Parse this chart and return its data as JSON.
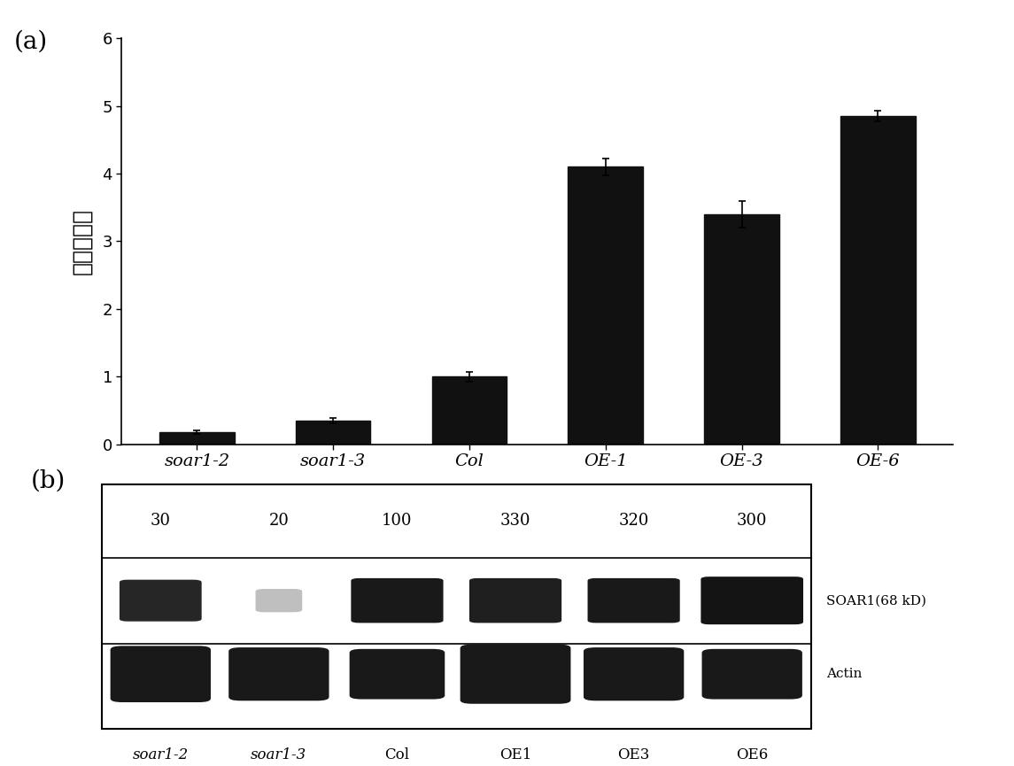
{
  "bar_categories": [
    "soar1-2",
    "soar1-3",
    "Col",
    "OE-1",
    "OE-3",
    "OE-6"
  ],
  "bar_values": [
    0.18,
    0.35,
    1.0,
    4.1,
    3.4,
    4.85
  ],
  "bar_errors": [
    0.03,
    0.04,
    0.07,
    0.12,
    0.2,
    0.08
  ],
  "bar_color": "#111111",
  "ylabel": "相对表达量",
  "ylim": [
    0,
    6
  ],
  "yticks": [
    0,
    1,
    2,
    3,
    4,
    5,
    6
  ],
  "panel_a_label": "(a)",
  "panel_b_label": "(b)",
  "wb_categories": [
    "soar1-2",
    "soar1-3",
    "Col",
    "OE1",
    "OE3",
    "OE6"
  ],
  "wb_numbers": [
    "30",
    "20",
    "100",
    "330",
    "320",
    "300"
  ],
  "soar1_label": "SOAR1(68 kD)",
  "actin_label": "Actin",
  "background_color": "#ffffff",
  "font_size_tick": 13,
  "font_size_label": 16,
  "font_size_panel": 18
}
